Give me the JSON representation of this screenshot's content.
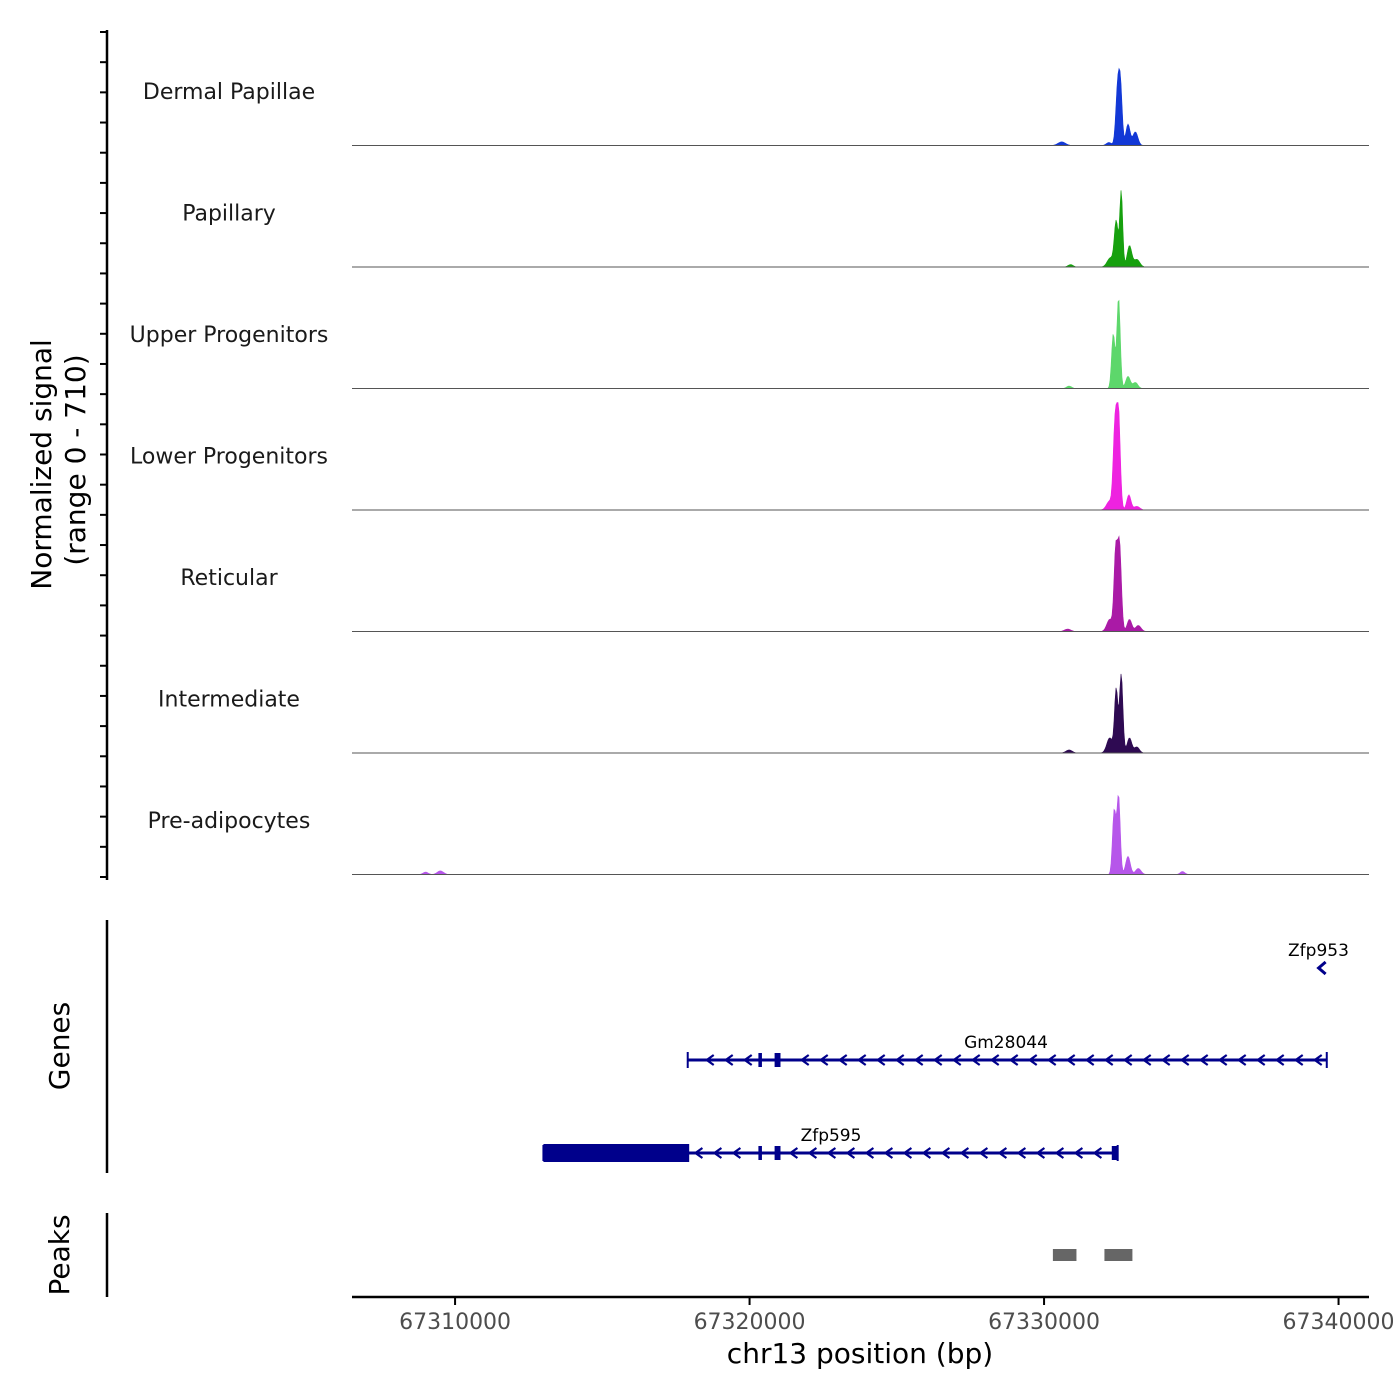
{
  "chart_data": {
    "type": "area",
    "title": "",
    "ylabel": "Normalized signal\n(range 0 - 710)",
    "ylabel_lines": [
      "Normalized signal",
      "(range 0 - 710)"
    ],
    "y_range": [
      0,
      710
    ],
    "xlabel": "chr13 position (bp)",
    "chromosome": "chr13",
    "xlim": [
      67306500,
      67341000
    ],
    "x_ticks": [
      67310000,
      67320000,
      67330000,
      67340000
    ],
    "x_tick_labels": [
      "67310000",
      "67320000",
      "67330000",
      "67340000"
    ],
    "series": [
      {
        "name": "Dermal Papillae",
        "color": "#1238d6",
        "peaks": [
          {
            "x": 67330600,
            "h": 12,
            "w": 180
          },
          {
            "x": 67332200,
            "h": 10,
            "w": 120
          },
          {
            "x": 67332500,
            "h": 190,
            "w": 90
          },
          {
            "x": 67332600,
            "h": 170,
            "w": 80
          },
          {
            "x": 67332850,
            "h": 70,
            "w": 100
          },
          {
            "x": 67333100,
            "h": 45,
            "w": 120
          }
        ]
      },
      {
        "name": "Papillary",
        "color": "#16a00e",
        "peaks": [
          {
            "x": 67330900,
            "h": 8,
            "w": 120
          },
          {
            "x": 67332250,
            "h": 30,
            "w": 150
          },
          {
            "x": 67332450,
            "h": 150,
            "w": 90
          },
          {
            "x": 67332620,
            "h": 250,
            "w": 70
          },
          {
            "x": 67332900,
            "h": 70,
            "w": 110
          },
          {
            "x": 67333150,
            "h": 25,
            "w": 140
          }
        ]
      },
      {
        "name": "Upper Progenitors",
        "color": "#5dd76b",
        "peaks": [
          {
            "x": 67330850,
            "h": 8,
            "w": 120
          },
          {
            "x": 67332350,
            "h": 180,
            "w": 80
          },
          {
            "x": 67332530,
            "h": 300,
            "w": 80
          },
          {
            "x": 67332850,
            "h": 40,
            "w": 110
          },
          {
            "x": 67333100,
            "h": 20,
            "w": 120
          }
        ]
      },
      {
        "name": "Lower Progenitors",
        "color": "#ee22e0",
        "peaks": [
          {
            "x": 67332230,
            "h": 30,
            "w": 150
          },
          {
            "x": 67332400,
            "h": 240,
            "w": 80
          },
          {
            "x": 67332520,
            "h": 340,
            "w": 90
          },
          {
            "x": 67332880,
            "h": 50,
            "w": 100
          },
          {
            "x": 67333150,
            "h": 12,
            "w": 140
          }
        ]
      },
      {
        "name": "Reticular",
        "color": "#aa1aa6",
        "peaks": [
          {
            "x": 67330800,
            "h": 8,
            "w": 150
          },
          {
            "x": 67332230,
            "h": 40,
            "w": 140
          },
          {
            "x": 67332430,
            "h": 250,
            "w": 80
          },
          {
            "x": 67332560,
            "h": 290,
            "w": 90
          },
          {
            "x": 67332900,
            "h": 40,
            "w": 110
          },
          {
            "x": 67333200,
            "h": 20,
            "w": 130
          }
        ]
      },
      {
        "name": "Intermediate",
        "color": "#2e0a52",
        "peaks": [
          {
            "x": 67330850,
            "h": 10,
            "w": 150
          },
          {
            "x": 67332230,
            "h": 50,
            "w": 140
          },
          {
            "x": 67332450,
            "h": 210,
            "w": 80
          },
          {
            "x": 67332620,
            "h": 260,
            "w": 80
          },
          {
            "x": 67332900,
            "h": 50,
            "w": 110
          },
          {
            "x": 67333150,
            "h": 20,
            "w": 120
          }
        ]
      },
      {
        "name": "Pre-adipocytes",
        "color": "#b656ea",
        "peaks": [
          {
            "x": 67309500,
            "h": 12,
            "w": 150
          },
          {
            "x": 67309000,
            "h": 8,
            "w": 120
          },
          {
            "x": 67332380,
            "h": 210,
            "w": 80
          },
          {
            "x": 67332530,
            "h": 260,
            "w": 80
          },
          {
            "x": 67332850,
            "h": 60,
            "w": 110
          },
          {
            "x": 67333200,
            "h": 20,
            "w": 130
          },
          {
            "x": 67334700,
            "h": 10,
            "w": 110
          }
        ]
      }
    ],
    "genes_title": "Genes",
    "genes": [
      {
        "name": "Zfp953",
        "strand": "-",
        "start": 67339250,
        "end": 67339600,
        "row": 0,
        "exons": []
      },
      {
        "name": "Gm28044",
        "strand": "-",
        "start": 67317900,
        "end": 67339600,
        "row": 1,
        "exons": [
          [
            67320300,
            67320420
          ],
          [
            67320850,
            67321050
          ]
        ]
      },
      {
        "name": "Zfp595",
        "strand": "-",
        "start": 67313000,
        "end": 67332500,
        "row": 2,
        "exons": [
          [
            67313000,
            67317950
          ],
          [
            67320300,
            67320420
          ],
          [
            67320850,
            67321050
          ],
          [
            67332300,
            67332500
          ]
        ]
      }
    ],
    "gene_color": "#00008b",
    "peaks_title": "Peaks",
    "peak_color": "#666666",
    "called_peaks": [
      [
        67330300,
        67331100
      ],
      [
        67332050,
        67333000
      ]
    ]
  }
}
